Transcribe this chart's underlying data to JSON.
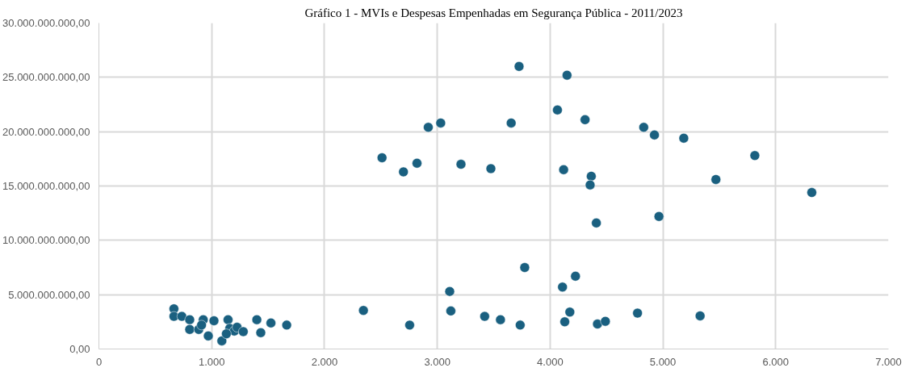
{
  "chart_data": {
    "type": "scatter",
    "title": "Gráfico 1 - MVIs e Despesas Empenhadas em Segurança Pública - 2011/2023",
    "marker": "circle",
    "grid": true,
    "xlim": [
      0,
      7000
    ],
    "xticks": [
      {
        "value": 0,
        "label": "0"
      },
      {
        "value": 1000,
        "label": "1.000"
      },
      {
        "value": 2000,
        "label": "2.000"
      },
      {
        "value": 3000,
        "label": "3.000"
      },
      {
        "value": 4000,
        "label": "4.000"
      },
      {
        "value": 5000,
        "label": "5.000"
      },
      {
        "value": 6000,
        "label": "6.000"
      },
      {
        "value": 7000,
        "label": "7.000"
      }
    ],
    "ylim": [
      0,
      30000000000
    ],
    "yticks": [
      {
        "value": 0,
        "label": "0,00"
      },
      {
        "value": 5000000000,
        "label": "5.000.000.000,00"
      },
      {
        "value": 10000000000,
        "label": "10.000.000.000,00"
      },
      {
        "value": 15000000000,
        "label": "15.000.000.000,00"
      },
      {
        "value": 20000000000,
        "label": "20.000.000.000,00"
      },
      {
        "value": 25000000000,
        "label": "25.000.000.000,00"
      },
      {
        "value": 30000000000,
        "label": "30.000.000.000,00"
      }
    ],
    "series": [
      {
        "color": "#1a6080",
        "x": [
          3725,
          4150,
          4065,
          4310,
          3030,
          2920,
          3655,
          4830,
          4925,
          5185,
          5815,
          2510,
          2820,
          2700,
          3210,
          3475,
          4120,
          4365,
          4355,
          5470,
          6320,
          4965,
          4410,
          3775,
          4225,
          4110,
          3110,
          2345,
          3120,
          2755,
          3420,
          3560,
          3735,
          4175,
          4130,
          4420,
          4490,
          4775,
          5330,
          665,
          665,
          735,
          805,
          805,
          885,
          925,
          910,
          970,
          1020,
          1090,
          1145,
          1160,
          1200,
          1225,
          1280,
          1130,
          1400,
          1525,
          1435,
          1665
        ],
        "values": [
          26000000000,
          25200000000,
          22000000000,
          21100000000,
          20800000000,
          20400000000,
          20800000000,
          20400000000,
          19700000000,
          19400000000,
          17800000000,
          17600000000,
          17100000000,
          16300000000,
          17000000000,
          16600000000,
          16500000000,
          15900000000,
          15100000000,
          15600000000,
          14400000000,
          12200000000,
          11600000000,
          7500000000,
          6700000000,
          5700000000,
          5300000000,
          3550000000,
          3500000000,
          2200000000,
          3000000000,
          2700000000,
          2200000000,
          3400000000,
          2500000000,
          2300000000,
          2550000000,
          3300000000,
          3050000000,
          3700000000,
          3000000000,
          3000000000,
          2700000000,
          1800000000,
          1800000000,
          2700000000,
          2200000000,
          1200000000,
          2600000000,
          750000000,
          2700000000,
          1900000000,
          1650000000,
          2000000000,
          1600000000,
          1400000000,
          2700000000,
          2400000000,
          1500000000,
          2200000000
        ]
      }
    ]
  }
}
